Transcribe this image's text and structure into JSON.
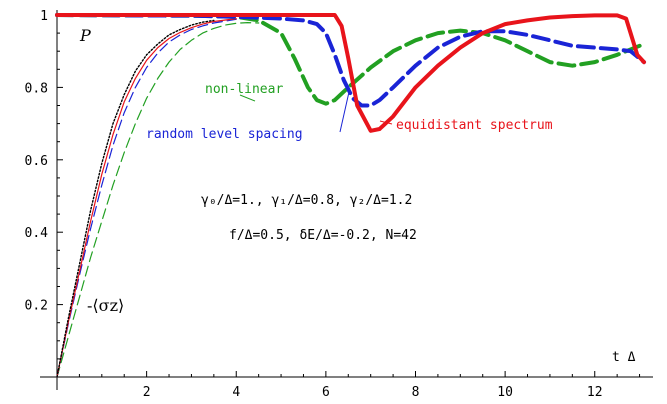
{
  "chart_data": {
    "type": "line",
    "title": "",
    "xlabel": "t Δ",
    "ylabel": "P",
    "xlim": [
      0,
      13.3
    ],
    "ylim": [
      0,
      1.0
    ],
    "x_ticks": [
      2,
      4,
      6,
      8,
      10,
      12
    ],
    "y_ticks": [
      0.2,
      0.4,
      0.6,
      0.8,
      1.0
    ],
    "x_tick_labels": [
      "2",
      "4",
      "6",
      "8",
      "10",
      "12"
    ],
    "y_tick_labels": [
      "0.2",
      "0.4",
      "0.6",
      "0.8",
      "1"
    ],
    "grid": false,
    "series": [
      {
        "name": "equidistant spectrum",
        "color": "#e8141b",
        "style": "solid-thick",
        "x": [
          0,
          6.2,
          6.35,
          6.5,
          6.7,
          7.0,
          7.2,
          7.5,
          8.0,
          8.5,
          9.0,
          9.5,
          10,
          10.5,
          11,
          11.5,
          12,
          12.5,
          12.7,
          12.8,
          12.95,
          13.1
        ],
        "y": [
          1.0,
          1.0,
          0.97,
          0.88,
          0.75,
          0.68,
          0.685,
          0.72,
          0.8,
          0.86,
          0.91,
          0.95,
          0.975,
          0.985,
          0.993,
          0.997,
          0.999,
          0.999,
          0.99,
          0.95,
          0.89,
          0.87
        ]
      },
      {
        "name": "random level spacing",
        "color": "#1a24d6",
        "style": "dashed-thick",
        "x": [
          0,
          3.0,
          4.0,
          5.0,
          5.5,
          5.8,
          6.0,
          6.2,
          6.4,
          6.6,
          6.8,
          7.0,
          7.2,
          7.5,
          8.0,
          8.5,
          9.0,
          9.5,
          10,
          10.5,
          11,
          11.5,
          12,
          12.5,
          12.8,
          13.1
        ],
        "y": [
          1.0,
          0.998,
          0.995,
          0.99,
          0.985,
          0.975,
          0.95,
          0.89,
          0.82,
          0.77,
          0.75,
          0.75,
          0.765,
          0.8,
          0.86,
          0.91,
          0.94,
          0.955,
          0.955,
          0.945,
          0.93,
          0.915,
          0.91,
          0.905,
          0.9,
          0.87
        ]
      },
      {
        "name": "non-linear",
        "color": "#22a022",
        "style": "dashed-thick",
        "x": [
          0,
          3.0,
          4.0,
          4.5,
          5.0,
          5.3,
          5.6,
          5.8,
          6.0,
          6.2,
          6.5,
          7.0,
          7.5,
          8.0,
          8.5,
          9.0,
          9.5,
          10,
          10.5,
          11,
          11.5,
          12,
          12.5,
          13.0
        ],
        "y": [
          1.0,
          0.998,
          0.995,
          0.985,
          0.95,
          0.88,
          0.8,
          0.765,
          0.755,
          0.765,
          0.8,
          0.855,
          0.9,
          0.93,
          0.95,
          0.957,
          0.95,
          0.93,
          0.9,
          0.87,
          0.86,
          0.87,
          0.89,
          0.915
        ]
      },
      {
        "name": "-⟨σz⟩ (black dotted)",
        "color": "#000000",
        "style": "dotted-thin",
        "x": [
          0,
          0.25,
          0.5,
          0.75,
          1.0,
          1.25,
          1.5,
          1.75,
          2.0,
          2.25,
          2.5,
          2.75,
          3.0,
          3.25,
          3.5
        ],
        "y": [
          0,
          0.16,
          0.31,
          0.46,
          0.59,
          0.7,
          0.78,
          0.845,
          0.89,
          0.92,
          0.945,
          0.96,
          0.972,
          0.98,
          0.985
        ]
      },
      {
        "name": "-⟨σz⟩ (red)",
        "color": "#e8141b",
        "style": "solid-thin",
        "x": [
          0,
          0.25,
          0.5,
          0.75,
          1.0,
          1.25,
          1.5,
          1.75,
          2.0,
          2.25,
          2.5,
          2.75,
          3.0,
          3.25,
          3.5,
          4.0
        ],
        "y": [
          0,
          0.15,
          0.29,
          0.43,
          0.56,
          0.67,
          0.76,
          0.825,
          0.875,
          0.91,
          0.935,
          0.952,
          0.965,
          0.975,
          0.982,
          0.99
        ]
      },
      {
        "name": "-⟨σz⟩ (blue)",
        "color": "#1a24d6",
        "style": "dashed-thin",
        "x": [
          0,
          0.25,
          0.5,
          0.75,
          1.0,
          1.25,
          1.5,
          1.75,
          2.0,
          2.25,
          2.5,
          2.75,
          3.0,
          3.25,
          3.5,
          4.0
        ],
        "y": [
          0,
          0.145,
          0.28,
          0.41,
          0.53,
          0.64,
          0.73,
          0.8,
          0.855,
          0.895,
          0.925,
          0.945,
          0.96,
          0.97,
          0.978,
          0.988
        ]
      },
      {
        "name": "-⟨σz⟩ (green)",
        "color": "#22a022",
        "style": "dashed-thin",
        "x": [
          0,
          0.25,
          0.5,
          0.75,
          1.0,
          1.25,
          1.5,
          1.75,
          2.0,
          2.25,
          2.5,
          2.75,
          3.0,
          3.25,
          3.5,
          3.75,
          4.0,
          4.25,
          4.5
        ],
        "y": [
          0,
          0.11,
          0.22,
          0.33,
          0.43,
          0.53,
          0.62,
          0.7,
          0.77,
          0.825,
          0.87,
          0.905,
          0.93,
          0.95,
          0.963,
          0.972,
          0.977,
          0.979,
          0.978
        ]
      }
    ],
    "annotations": {
      "p_label": "P",
      "equidistant": "equidistant spectrum",
      "random": "random level spacing",
      "nonlinear": "non-linear",
      "gamma_params": "γ₀/Δ=1., γ₁/Δ=0.8, γ₂/Δ=1.2",
      "f_params": "f/Δ=0.5, δE/Δ=-0.2, N=42",
      "sigma_label": "-⟨σz⟩",
      "x_axis_label": "t Δ"
    }
  }
}
